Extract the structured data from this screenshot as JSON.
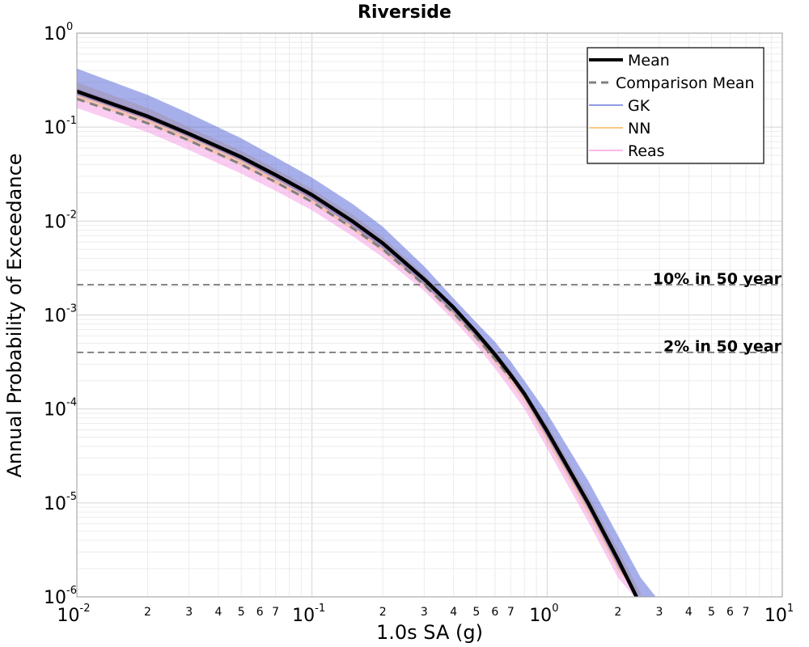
{
  "chart_data": {
    "type": "line",
    "title": "Riverside",
    "xlabel": "1.0s SA (g)",
    "ylabel": "Annual Probability of Exceedance",
    "xscale": "log",
    "yscale": "log",
    "xlim": [
      0.01,
      10
    ],
    "ylim": [
      1e-06,
      1
    ],
    "grid": true,
    "legend_position": "top-right",
    "x_major_ticks": [
      {
        "value": 0.01,
        "base": "10",
        "exp": "-2"
      },
      {
        "value": 0.1,
        "base": "10",
        "exp": "-1"
      },
      {
        "value": 1,
        "base": "10",
        "exp": "0"
      },
      {
        "value": 10,
        "base": "10",
        "exp": "1"
      }
    ],
    "x_minor_ticks": [
      {
        "value": 0.02,
        "label": "2"
      },
      {
        "value": 0.03,
        "label": "3"
      },
      {
        "value": 0.04,
        "label": "4"
      },
      {
        "value": 0.05,
        "label": "5"
      },
      {
        "value": 0.06,
        "label": "6"
      },
      {
        "value": 0.07,
        "label": "7"
      },
      {
        "value": 0.2,
        "label": "2"
      },
      {
        "value": 0.3,
        "label": "3"
      },
      {
        "value": 0.4,
        "label": "4"
      },
      {
        "value": 0.5,
        "label": "5"
      },
      {
        "value": 0.6,
        "label": "6"
      },
      {
        "value": 0.7,
        "label": "7"
      },
      {
        "value": 2,
        "label": "2"
      },
      {
        "value": 3,
        "label": "3"
      },
      {
        "value": 4,
        "label": "4"
      },
      {
        "value": 5,
        "label": "5"
      },
      {
        "value": 6,
        "label": "6"
      },
      {
        "value": 7,
        "label": "7"
      }
    ],
    "y_major_ticks": [
      {
        "value": 1,
        "base": "10",
        "exp": "0"
      },
      {
        "value": 0.1,
        "base": "10",
        "exp": "-1"
      },
      {
        "value": 0.01,
        "base": "10",
        "exp": "-2"
      },
      {
        "value": 0.001,
        "base": "10",
        "exp": "-3"
      },
      {
        "value": 0.0001,
        "base": "10",
        "exp": "-4"
      },
      {
        "value": 1e-05,
        "base": "10",
        "exp": "-5"
      },
      {
        "value": 1e-06,
        "base": "10",
        "exp": "-6"
      }
    ],
    "series": [
      {
        "name": "Mean",
        "style": "solid",
        "color": "#000000",
        "x": [
          0.01,
          0.02,
          0.03,
          0.05,
          0.07,
          0.1,
          0.15,
          0.2,
          0.3,
          0.4,
          0.5,
          0.6,
          0.7,
          0.8,
          1.0,
          1.5,
          2.0,
          2.4
        ],
        "y": [
          0.24,
          0.13,
          0.085,
          0.048,
          0.031,
          0.019,
          0.0098,
          0.0058,
          0.0024,
          0.0012,
          0.00065,
          0.00038,
          0.00023,
          0.000145,
          5.8e-05,
          9.8e-06,
          2.5e-06,
          1e-06
        ]
      },
      {
        "name": "Comparison Mean",
        "style": "dashed",
        "color": "#808080",
        "x": [
          0.01,
          0.02,
          0.03,
          0.05,
          0.07,
          0.1,
          0.15,
          0.2,
          0.3,
          0.4,
          0.5,
          0.6,
          0.7
        ],
        "y": [
          0.2,
          0.11,
          0.072,
          0.04,
          0.026,
          0.016,
          0.0083,
          0.005,
          0.0021,
          0.00105,
          0.00058,
          0.00034,
          0.00021
        ]
      },
      {
        "name": "GK",
        "style": "band",
        "color": "#4f5fd8",
        "x": [
          0.01,
          0.02,
          0.03,
          0.05,
          0.07,
          0.1,
          0.15,
          0.2,
          0.3,
          0.4,
          0.5,
          0.6,
          0.7,
          0.8,
          1.0,
          1.5,
          2.0,
          2.5,
          2.9
        ],
        "y_upper": [
          0.42,
          0.22,
          0.14,
          0.076,
          0.048,
          0.029,
          0.015,
          0.0087,
          0.0033,
          0.0015,
          0.00083,
          0.00052,
          0.00032,
          0.0002,
          9e-05,
          1.7e-05,
          4.5e-06,
          1.6e-06,
          1e-06
        ],
        "y_lower": [
          0.22,
          0.12,
          0.078,
          0.044,
          0.028,
          0.017,
          0.0087,
          0.0051,
          0.0021,
          0.00105,
          0.00058,
          0.00034,
          0.00021,
          0.00013,
          5e-05,
          8.5e-06,
          2.1e-06,
          9e-07,
          1e-06
        ]
      },
      {
        "name": "NN",
        "style": "band",
        "color": "#f2a93b",
        "x": [
          0.01,
          0.02,
          0.03,
          0.05,
          0.07,
          0.1,
          0.15,
          0.2,
          0.3,
          0.4,
          0.5,
          0.6,
          0.7,
          0.8,
          1.0,
          1.5,
          2.0,
          2.5
        ],
        "y_upper": [
          0.3,
          0.16,
          0.1,
          0.056,
          0.036,
          0.022,
          0.0115,
          0.0067,
          0.0027,
          0.00125,
          0.0007,
          0.00042,
          0.00026,
          0.00016,
          6.8e-05,
          1.2e-05,
          3.2e-06,
          1.1e-06
        ],
        "y_lower": [
          0.2,
          0.11,
          0.07,
          0.039,
          0.025,
          0.0155,
          0.0079,
          0.0047,
          0.002,
          0.00098,
          0.00054,
          0.00031,
          0.00019,
          0.00012,
          4.5e-05,
          7.5e-06,
          1.9e-06,
          1e-06
        ]
      },
      {
        "name": "Reas",
        "style": "band",
        "color": "#f58de0",
        "x": [
          0.01,
          0.02,
          0.03,
          0.05,
          0.07,
          0.1,
          0.15,
          0.2,
          0.3,
          0.4,
          0.5,
          0.6,
          0.7,
          0.8,
          1.0,
          1.5,
          2.0,
          2.35
        ],
        "y_upper": [
          0.26,
          0.14,
          0.09,
          0.05,
          0.032,
          0.02,
          0.0102,
          0.006,
          0.0024,
          0.0011,
          0.00062,
          0.00037,
          0.00022,
          0.00014,
          5.5e-05,
          9.5e-06,
          2.4e-06,
          1e-06
        ],
        "y_lower": [
          0.16,
          0.088,
          0.057,
          0.032,
          0.021,
          0.013,
          0.0068,
          0.0041,
          0.0018,
          0.00088,
          0.00048,
          0.00027,
          0.00016,
          0.0001,
          3.8e-05,
          6.2e-06,
          1.6e-06,
          1e-06
        ]
      }
    ],
    "reference_lines": [
      {
        "label": "10% in 50 year",
        "y": 0.0021
      },
      {
        "label": "2% in 50 year",
        "y": 0.0004
      }
    ]
  }
}
